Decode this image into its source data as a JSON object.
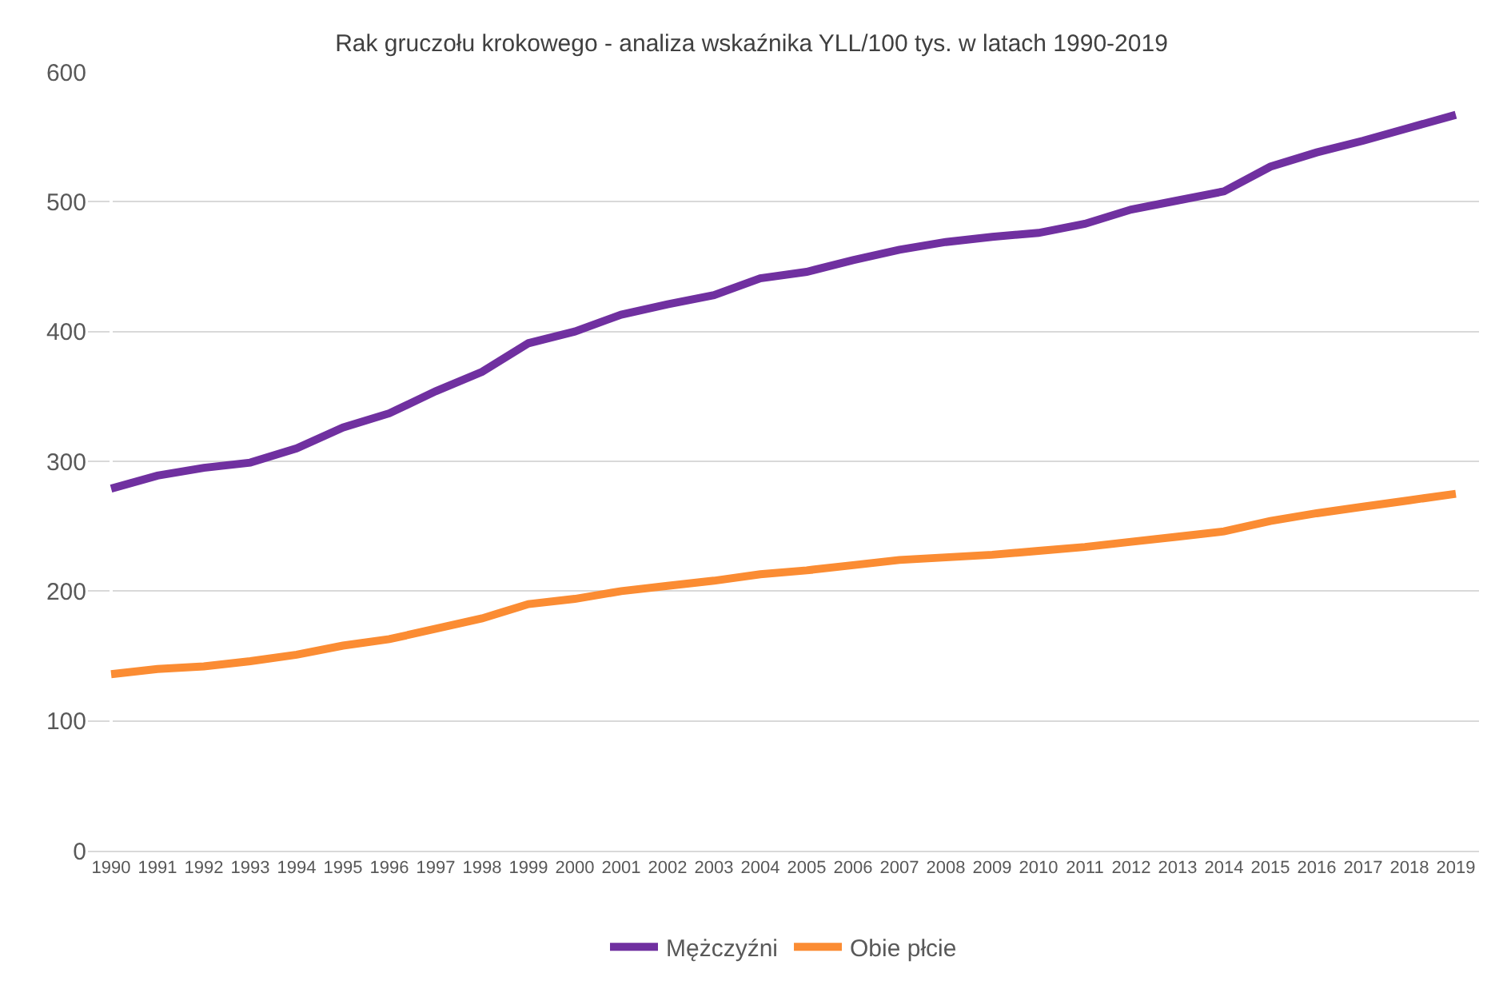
{
  "chart_data": {
    "type": "line",
    "title": "Rak gruczołu krokowego - analiza wskaźnika YLL/100 tys. w latach 1990-2019",
    "categories": [
      "1990",
      "1991",
      "1992",
      "1993",
      "1994",
      "1995",
      "1996",
      "1997",
      "1998",
      "1999",
      "2000",
      "2001",
      "2002",
      "2003",
      "2004",
      "2005",
      "2006",
      "2007",
      "2008",
      "2009",
      "2010",
      "2011",
      "2012",
      "2013",
      "2014",
      "2015",
      "2016",
      "2017",
      "2018",
      "2019"
    ],
    "series": [
      {
        "name": "Mężczyźni",
        "color": "#7030a0",
        "values": [
          279,
          289,
          295,
          299,
          310,
          326,
          337,
          354,
          369,
          391,
          400,
          413,
          421,
          428,
          441,
          446,
          455,
          463,
          469,
          473,
          476,
          483,
          494,
          501,
          508,
          527,
          538,
          547,
          557,
          567
        ]
      },
      {
        "name": "Obie płcie",
        "color": "#fb8c33",
        "values": [
          136,
          140,
          142,
          146,
          151,
          158,
          163,
          171,
          179,
          190,
          194,
          200,
          204,
          208,
          213,
          216,
          220,
          224,
          226,
          228,
          231,
          234,
          238,
          242,
          246,
          254,
          260,
          265,
          270,
          275
        ]
      }
    ],
    "ylim": [
      0,
      600
    ],
    "yticks": [
      0,
      100,
      200,
      300,
      400,
      500,
      600
    ],
    "grid": "y",
    "legend": "bottom",
    "marker": "none",
    "line_style": "solid"
  }
}
